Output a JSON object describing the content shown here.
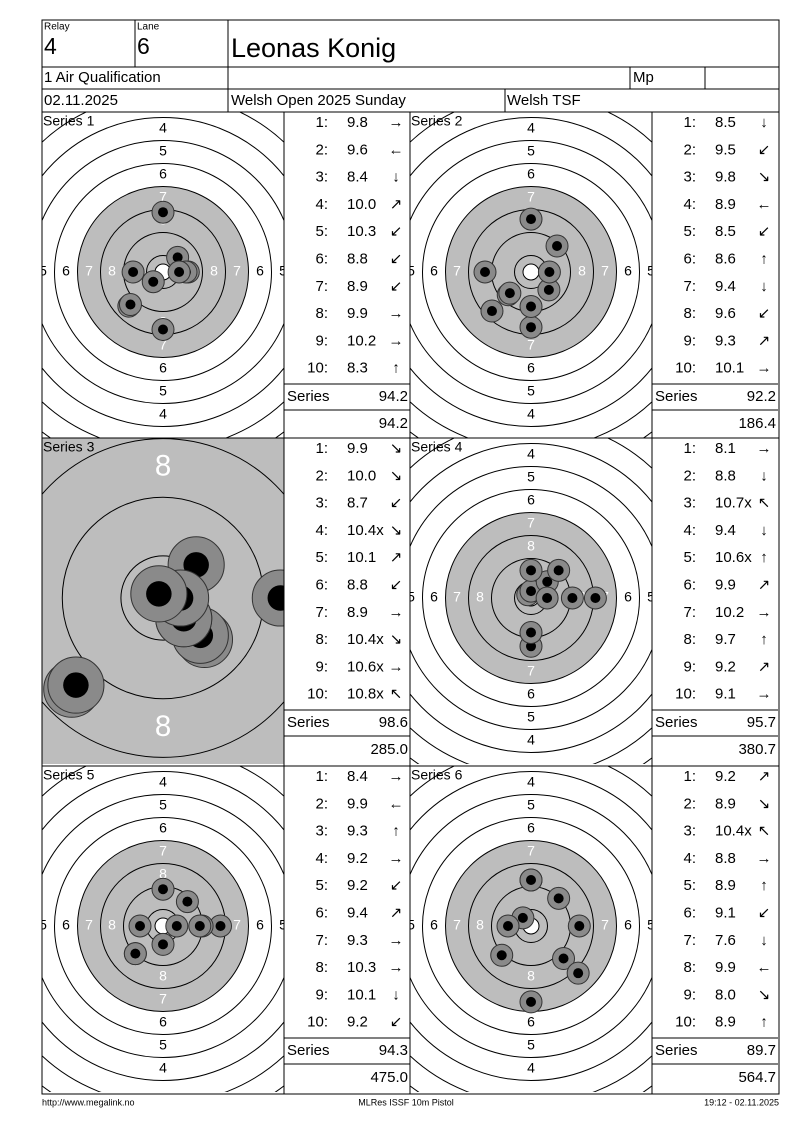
{
  "header": {
    "relay_label": "Relay",
    "relay": "4",
    "lane_label": "Lane",
    "lane": "6",
    "name": "Leonas Konig",
    "event": "1 Air Qualification",
    "mp_label": "Mp",
    "date": "02.11.2025",
    "competition": "Welsh Open 2025 Sunday",
    "organizer": "Welsh TSF"
  },
  "target": {
    "ring_labels": [
      4,
      5,
      6,
      7,
      8
    ]
  },
  "shot_numbers": [
    "1:",
    "2:",
    "3:",
    "4:",
    "5:",
    "6:",
    "7:",
    "8:",
    "9:",
    "10:"
  ],
  "series_label": "Series",
  "series": [
    {
      "title": "Series 1",
      "total": "94.2",
      "cumulative": "94.2",
      "shots": [
        {
          "score": "9.8",
          "dir": "→"
        },
        {
          "score": "9.6",
          "dir": "←"
        },
        {
          "score": "8.4",
          "dir": "↓"
        },
        {
          "score": "10.0",
          "dir": "↗"
        },
        {
          "score": "10.3",
          "dir": "↙"
        },
        {
          "score": "8.8",
          "dir": "↙"
        },
        {
          "score": "8.9",
          "dir": "↙"
        },
        {
          "score": "9.9",
          "dir": "→"
        },
        {
          "score": "10.2",
          "dir": "→"
        },
        {
          "score": "8.3",
          "dir": "↑"
        }
      ]
    },
    {
      "title": "Series 2",
      "total": "92.2",
      "cumulative": "186.4",
      "shots": [
        {
          "score": "8.5",
          "dir": "↓"
        },
        {
          "score": "9.5",
          "dir": "↙"
        },
        {
          "score": "9.8",
          "dir": "↘"
        },
        {
          "score": "8.9",
          "dir": "←"
        },
        {
          "score": "8.5",
          "dir": "↙"
        },
        {
          "score": "8.6",
          "dir": "↑"
        },
        {
          "score": "9.4",
          "dir": "↓"
        },
        {
          "score": "9.6",
          "dir": "↙"
        },
        {
          "score": "9.3",
          "dir": "↗"
        },
        {
          "score": "10.1",
          "dir": "→"
        }
      ]
    },
    {
      "title": "Series 3",
      "total": "98.6",
      "cumulative": "285.0",
      "shots": [
        {
          "score": "9.9",
          "dir": "↘"
        },
        {
          "score": "10.0",
          "dir": "↘"
        },
        {
          "score": "8.7",
          "dir": "↙"
        },
        {
          "score": "10.4x",
          "dir": "↘"
        },
        {
          "score": "10.1",
          "dir": "↗"
        },
        {
          "score": "8.8",
          "dir": "↙"
        },
        {
          "score": "8.9",
          "dir": "→"
        },
        {
          "score": "10.4x",
          "dir": "↘"
        },
        {
          "score": "10.6x",
          "dir": "→"
        },
        {
          "score": "10.8x",
          "dir": "↖"
        }
      ]
    },
    {
      "title": "Series 4",
      "total": "95.7",
      "cumulative": "380.7",
      "shots": [
        {
          "score": "8.1",
          "dir": "→"
        },
        {
          "score": "8.8",
          "dir": "↓"
        },
        {
          "score": "10.7x",
          "dir": "↖"
        },
        {
          "score": "9.4",
          "dir": "↓"
        },
        {
          "score": "10.6x",
          "dir": "↑"
        },
        {
          "score": "9.9",
          "dir": "↗"
        },
        {
          "score": "10.2",
          "dir": "→"
        },
        {
          "score": "9.7",
          "dir": "↑"
        },
        {
          "score": "9.2",
          "dir": "↗"
        },
        {
          "score": "9.1",
          "dir": "→"
        }
      ]
    },
    {
      "title": "Series 5",
      "total": "94.3",
      "cumulative": "475.0",
      "shots": [
        {
          "score": "8.4",
          "dir": "→"
        },
        {
          "score": "9.9",
          "dir": "←"
        },
        {
          "score": "9.3",
          "dir": "↑"
        },
        {
          "score": "9.2",
          "dir": "→"
        },
        {
          "score": "9.2",
          "dir": "↙"
        },
        {
          "score": "9.4",
          "dir": "↗"
        },
        {
          "score": "9.3",
          "dir": "→"
        },
        {
          "score": "10.3",
          "dir": "→"
        },
        {
          "score": "10.1",
          "dir": "↓"
        },
        {
          "score": "9.2",
          "dir": "↙"
        }
      ]
    },
    {
      "title": "Series 6",
      "total": "89.7",
      "cumulative": "564.7",
      "shots": [
        {
          "score": "9.2",
          "dir": "↗"
        },
        {
          "score": "8.9",
          "dir": "↘"
        },
        {
          "score": "10.4x",
          "dir": "↖"
        },
        {
          "score": "8.8",
          "dir": "→"
        },
        {
          "score": "8.9",
          "dir": "↑"
        },
        {
          "score": "9.1",
          "dir": "↙"
        },
        {
          "score": "7.6",
          "dir": "↓"
        },
        {
          "score": "9.9",
          "dir": "←"
        },
        {
          "score": "8.0",
          "dir": "↘"
        },
        {
          "score": "8.9",
          "dir": "↑"
        }
      ]
    }
  ],
  "footer": {
    "left": "http://www.megalink.no",
    "center": "MLRes ISSF 10m Pistol",
    "right": "19:12 - 02.11.2025"
  }
}
